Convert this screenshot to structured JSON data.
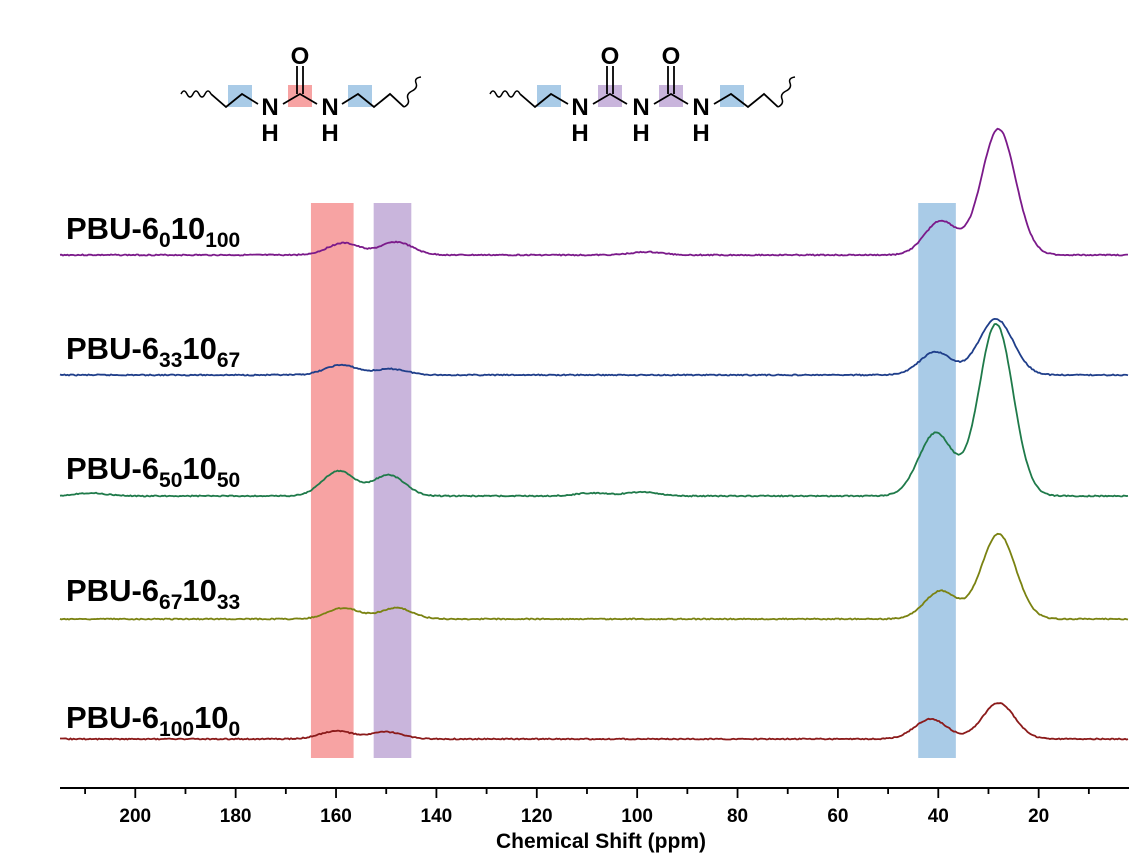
{
  "chart_data": {
    "type": "line",
    "title": "",
    "xlabel": "Chemical Shift (ppm)",
    "ylabel": "",
    "xlim": [
      215,
      2
    ],
    "x_reversed": true,
    "x_ticks": [
      200,
      180,
      160,
      140,
      120,
      100,
      80,
      60,
      40,
      20
    ],
    "grid": false,
    "highlight_bands": [
      {
        "from": 156.5,
        "to": 165,
        "color": "#f7a3a3"
      },
      {
        "from": 145,
        "to": 152.5,
        "color": "#c9b5dc"
      },
      {
        "from": 36.5,
        "to": 44,
        "color": "#a9cbe7"
      }
    ],
    "series": [
      {
        "name": "PBU-6₀10₁₀₀",
        "label": {
          "base": "PBU-6",
          "sub1": "0",
          "mid": "10",
          "sub2": "100"
        },
        "color": "#7b1a8a",
        "peaks": [
          {
            "x": 158.5,
            "h": 12
          },
          {
            "x": 148,
            "h": 13
          },
          {
            "x": 98,
            "h": 3
          },
          {
            "x": 39.5,
            "h": 34
          },
          {
            "x": 28,
            "h": 126
          }
        ]
      },
      {
        "name": "PBU-6₃₃10₆₇",
        "label": {
          "base": "PBU-6",
          "sub1": "33",
          "mid": "10",
          "sub2": "67"
        },
        "color": "#1f3e8a",
        "peaks": [
          {
            "x": 159,
            "h": 10
          },
          {
            "x": 149,
            "h": 6
          },
          {
            "x": 40.5,
            "h": 23
          },
          {
            "x": 28.5,
            "h": 56
          }
        ]
      },
      {
        "name": "PBU-6₅₀10₅₀",
        "label": {
          "base": "PBU-6",
          "sub1": "50",
          "mid": "10",
          "sub2": "50"
        },
        "color": "#1f7a4a",
        "peaks": [
          {
            "x": 209,
            "h": 3
          },
          {
            "x": 159.5,
            "h": 25
          },
          {
            "x": 149.5,
            "h": 21
          },
          {
            "x": 109,
            "h": 3
          },
          {
            "x": 99,
            "h": 4
          },
          {
            "x": 40.5,
            "h": 63
          },
          {
            "x": 28.5,
            "h": 172
          }
        ]
      },
      {
        "name": "PBU-6₆₇10₃₃",
        "label": {
          "base": "PBU-6",
          "sub1": "67",
          "mid": "10",
          "sub2": "33"
        },
        "color": "#7a8211",
        "peaks": [
          {
            "x": 158.5,
            "h": 11
          },
          {
            "x": 148,
            "h": 11
          },
          {
            "x": 39.5,
            "h": 28
          },
          {
            "x": 28,
            "h": 85
          }
        ]
      },
      {
        "name": "PBU-6₁₀₀10₀",
        "label": {
          "base": "PBU-6",
          "sub1": "100",
          "mid": "10",
          "sub2": "0"
        },
        "color": "#8b1a1a",
        "peaks": [
          {
            "x": 160,
            "h": 8
          },
          {
            "x": 150,
            "h": 7
          },
          {
            "x": 41.5,
            "h": 20
          },
          {
            "x": 28,
            "h": 36
          }
        ]
      }
    ]
  },
  "structures": {
    "left": {
      "atoms": [
        "O",
        "N",
        "H",
        "N",
        "H"
      ]
    },
    "right": {
      "atoms": [
        "O",
        "O",
        "N",
        "H",
        "N",
        "H",
        "N",
        "H"
      ]
    }
  }
}
